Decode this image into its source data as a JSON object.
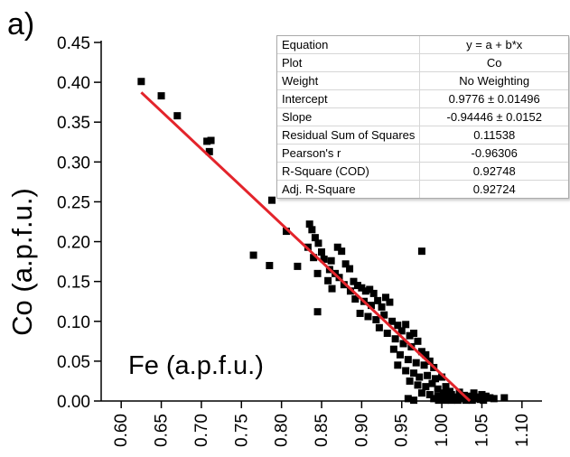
{
  "panel_label": "a)",
  "chart_data": {
    "type": "scatter",
    "title": "",
    "xlabel": "",
    "ylabel": "Co (a.p.f.u.)",
    "inside_label": "Fe (a.p.f.u.)",
    "xlim": [
      0.575,
      1.125
    ],
    "ylim": [
      0.0,
      0.45
    ],
    "x_ticks": [
      "0.60",
      "0.65",
      "0.70",
      "0.75",
      "0.80",
      "0.85",
      "0.90",
      "0.95",
      "1.00",
      "1.05",
      "1.10"
    ],
    "x_tick_values": [
      0.6,
      0.65,
      0.7,
      0.75,
      0.8,
      0.85,
      0.9,
      0.95,
      1.0,
      1.05,
      1.1
    ],
    "y_ticks": [
      "0.00",
      "0.05",
      "0.10",
      "0.15",
      "0.20",
      "0.25",
      "0.30",
      "0.35",
      "0.40",
      "0.45"
    ],
    "y_tick_values": [
      0.0,
      0.05,
      0.1,
      0.15,
      0.2,
      0.25,
      0.3,
      0.35,
      0.4,
      0.45
    ],
    "grid": false,
    "marker_color": "#000000",
    "fit_color": "#e3242b",
    "points": [
      [
        0.625,
        0.401
      ],
      [
        0.65,
        0.383
      ],
      [
        0.67,
        0.358
      ],
      [
        0.707,
        0.326
      ],
      [
        0.712,
        0.327
      ],
      [
        0.71,
        0.313
      ],
      [
        0.788,
        0.252
      ],
      [
        0.806,
        0.213
      ],
      [
        0.765,
        0.183
      ],
      [
        0.785,
        0.17
      ],
      [
        0.82,
        0.169
      ],
      [
        0.835,
        0.222
      ],
      [
        0.838,
        0.215
      ],
      [
        0.842,
        0.205
      ],
      [
        0.846,
        0.198
      ],
      [
        0.833,
        0.193
      ],
      [
        0.85,
        0.187
      ],
      [
        0.84,
        0.18
      ],
      [
        0.853,
        0.178
      ],
      [
        0.862,
        0.176
      ],
      [
        0.87,
        0.193
      ],
      [
        0.875,
        0.188
      ],
      [
        0.86,
        0.165
      ],
      [
        0.867,
        0.16
      ],
      [
        0.88,
        0.172
      ],
      [
        0.885,
        0.166
      ],
      [
        0.845,
        0.16
      ],
      [
        0.858,
        0.151
      ],
      [
        0.872,
        0.155
      ],
      [
        0.878,
        0.146
      ],
      [
        0.89,
        0.15
      ],
      [
        0.863,
        0.141
      ],
      [
        0.886,
        0.138
      ],
      [
        0.895,
        0.145
      ],
      [
        0.9,
        0.142
      ],
      [
        0.905,
        0.138
      ],
      [
        0.91,
        0.14
      ],
      [
        0.915,
        0.135
      ],
      [
        0.892,
        0.128
      ],
      [
        0.903,
        0.125
      ],
      [
        0.912,
        0.12
      ],
      [
        0.92,
        0.126
      ],
      [
        0.925,
        0.118
      ],
      [
        0.93,
        0.13
      ],
      [
        0.935,
        0.124
      ],
      [
        0.845,
        0.112
      ],
      [
        0.898,
        0.11
      ],
      [
        0.908,
        0.106
      ],
      [
        0.918,
        0.102
      ],
      [
        0.928,
        0.108
      ],
      [
        0.938,
        0.1
      ],
      [
        0.945,
        0.095
      ],
      [
        0.95,
        0.088
      ],
      [
        0.955,
        0.096
      ],
      [
        0.96,
        0.082
      ],
      [
        0.965,
        0.085
      ],
      [
        0.922,
        0.092
      ],
      [
        0.932,
        0.085
      ],
      [
        0.942,
        0.078
      ],
      [
        0.952,
        0.072
      ],
      [
        0.962,
        0.068
      ],
      [
        0.97,
        0.075
      ],
      [
        0.975,
        0.188
      ],
      [
        0.975,
        0.062
      ],
      [
        0.98,
        0.058
      ],
      [
        0.94,
        0.065
      ],
      [
        0.948,
        0.058
      ],
      [
        0.958,
        0.052
      ],
      [
        0.968,
        0.048
      ],
      [
        0.978,
        0.045
      ],
      [
        0.985,
        0.05
      ],
      [
        0.99,
        0.042
      ],
      [
        0.945,
        0.045
      ],
      [
        0.955,
        0.038
      ],
      [
        0.965,
        0.035
      ],
      [
        0.972,
        0.03
      ],
      [
        0.982,
        0.032
      ],
      [
        0.992,
        0.028
      ],
      [
        1.0,
        0.03
      ],
      [
        0.96,
        0.025
      ],
      [
        0.97,
        0.02
      ],
      [
        0.98,
        0.018
      ],
      [
        0.988,
        0.022
      ],
      [
        0.995,
        0.015
      ],
      [
        1.005,
        0.018
      ],
      [
        1.01,
        0.012
      ],
      [
        0.975,
        0.01
      ],
      [
        0.985,
        0.008
      ],
      [
        0.995,
        0.006
      ],
      [
        1.002,
        0.01
      ],
      [
        1.012,
        0.008
      ],
      [
        1.018,
        0.005
      ],
      [
        1.022,
        0.011
      ],
      [
        1.028,
        0.007
      ],
      [
        1.035,
        0.006
      ],
      [
        1.04,
        0.01
      ],
      [
        1.045,
        0.005
      ],
      [
        1.05,
        0.008
      ],
      [
        1.055,
        0.006
      ],
      [
        1.06,
        0.004
      ],
      [
        1.078,
        0.004
      ],
      [
        0.958,
        0.003
      ],
      [
        0.965,
        0.001
      ],
      [
        0.99,
        0.003
      ],
      [
        1.0,
        0.002
      ],
      [
        1.008,
        0.004
      ],
      [
        1.015,
        0.002
      ],
      [
        1.025,
        0.003
      ],
      [
        1.032,
        0.002
      ],
      [
        1.038,
        0.001
      ],
      [
        1.048,
        0.002
      ],
      [
        1.052,
        0.001
      ],
      [
        1.065,
        0.003
      ],
      [
        0.996,
        0.001
      ],
      [
        1.004,
        0.001
      ],
      [
        1.012,
        0.001
      ],
      [
        1.02,
        0.001
      ],
      [
        1.03,
        0.001
      ],
      [
        1.042,
        0.003
      ]
    ],
    "fit": {
      "intercept": 0.9776,
      "slope": -0.94446,
      "x_range": [
        0.625,
        1.035
      ]
    },
    "stats_table": [
      {
        "key": "Equation",
        "value": "y = a + b*x"
      },
      {
        "key": "Plot",
        "value": "Co"
      },
      {
        "key": "Weight",
        "value": "No Weighting"
      },
      {
        "key": "Intercept",
        "value": "0.9776 ± 0.01496"
      },
      {
        "key": "Slope",
        "value": "-0.94446 ± 0.0152"
      },
      {
        "key": "Residual Sum of Squares",
        "value": "0.11538"
      },
      {
        "key": "Pearson's r",
        "value": "-0.96306"
      },
      {
        "key": "R-Square (COD)",
        "value": "0.92748"
      },
      {
        "key": "Adj. R-Square",
        "value": "0.92724"
      }
    ]
  }
}
